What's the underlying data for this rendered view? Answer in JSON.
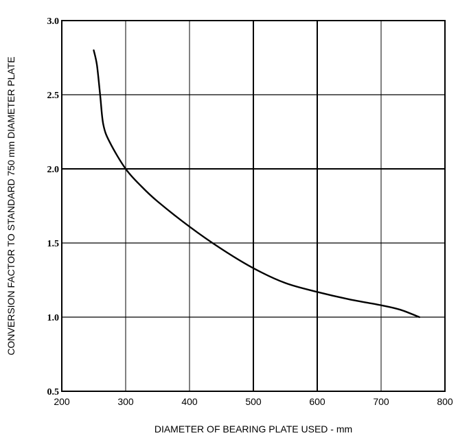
{
  "chart_data": {
    "type": "line",
    "title": "",
    "xlabel": "DIAMETER OF BEARING PLATE USED - mm",
    "ylabel": "CONVERSION FACTOR TO STANDARD 750 mm DIAMETER PLATE",
    "xlim": [
      200,
      800
    ],
    "ylim": [
      0.5,
      3.0
    ],
    "x_ticks": [
      "200",
      "300",
      "400",
      "500",
      "600",
      "700",
      "800"
    ],
    "y_ticks": [
      "0.5",
      "1.0",
      "1.5",
      "2.0",
      "2.5",
      "3.0"
    ],
    "grid": true,
    "series": [
      {
        "x": [
          250,
          255,
          260,
          265,
          275,
          300,
          325,
          350,
          400,
          450,
          500,
          550,
          600,
          650,
          700,
          730,
          760
        ],
        "y": [
          2.8,
          2.7,
          2.5,
          2.3,
          2.18,
          2.0,
          1.88,
          1.78,
          1.61,
          1.46,
          1.33,
          1.23,
          1.17,
          1.12,
          1.08,
          1.05,
          1.0
        ]
      }
    ]
  }
}
